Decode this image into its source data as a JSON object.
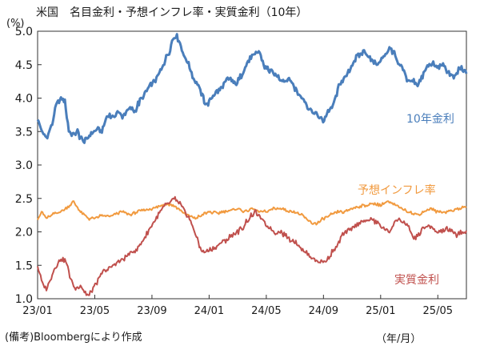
{
  "chart_data": {
    "type": "line",
    "title": "米国　名目金利・予想インフレ率・実質金利（10年）",
    "ylabel": "(%)",
    "xlabel_unit": "（年/月）",
    "source_note": "(備考)Bloombergにより作成",
    "ylim": [
      1.0,
      5.0
    ],
    "y_ticks": [
      "1.0",
      "1.5",
      "2.0",
      "2.5",
      "3.0",
      "3.5",
      "4.0",
      "4.5",
      "5.0"
    ],
    "y_tick_values": [
      1.0,
      1.5,
      2.0,
      2.5,
      3.0,
      3.5,
      4.0,
      4.5,
      5.0
    ],
    "x_ticks": [
      "23/01",
      "23/05",
      "23/09",
      "24/01",
      "24/05",
      "24/09",
      "25/01",
      "25/05"
    ],
    "x_range_months": [
      0,
      30
    ],
    "x_tick_months": [
      0,
      4,
      8,
      12,
      16,
      20,
      24,
      28
    ],
    "series": [
      {
        "name": "10年金利",
        "color": "#4a7ebb",
        "months": [
          0,
          0.3,
          0.6,
          1.0,
          1.3,
          1.6,
          1.9,
          2.2,
          2.5,
          2.8,
          3.0,
          3.3,
          3.6,
          3.9,
          4.2,
          4.5,
          4.8,
          5.0,
          5.3,
          5.6,
          5.9,
          6.2,
          6.5,
          6.8,
          7.0,
          7.3,
          7.6,
          7.9,
          8.2,
          8.5,
          8.8,
          9.0,
          9.2,
          9.4,
          9.6,
          9.8,
          10.0,
          10.3,
          10.6,
          10.9,
          11.2,
          11.5,
          11.8,
          12.0,
          12.3,
          12.6,
          12.9,
          13.2,
          13.5,
          13.8,
          14.0,
          14.3,
          14.6,
          14.9,
          15.2,
          15.5,
          15.8,
          16.0,
          16.3,
          16.6,
          16.9,
          17.2,
          17.5,
          17.8,
          18.0,
          18.3,
          18.6,
          18.9,
          19.2,
          19.5,
          19.8,
          20.0,
          20.3,
          20.6,
          20.9,
          21.2,
          21.5,
          21.8,
          22.0,
          22.3,
          22.6,
          22.9,
          23.2,
          23.5,
          23.8,
          24.0,
          24.3,
          24.6,
          24.9,
          25.2,
          25.5,
          25.8,
          26.0,
          26.3,
          26.6,
          26.9,
          27.2,
          27.5,
          27.8,
          28.0,
          28.3,
          28.6,
          28.9,
          29.2,
          29.5,
          29.8,
          30.0
        ],
        "values": [
          3.7,
          3.5,
          3.4,
          3.6,
          3.9,
          4.0,
          3.95,
          3.5,
          3.45,
          3.5,
          3.4,
          3.35,
          3.45,
          3.5,
          3.55,
          3.5,
          3.7,
          3.75,
          3.7,
          3.8,
          3.72,
          3.8,
          3.85,
          3.8,
          3.9,
          4.0,
          4.1,
          4.2,
          4.25,
          4.35,
          4.5,
          4.6,
          4.7,
          4.85,
          4.95,
          4.9,
          4.8,
          4.6,
          4.5,
          4.3,
          4.2,
          4.05,
          3.9,
          3.95,
          4.05,
          4.1,
          4.15,
          4.25,
          4.3,
          4.2,
          4.25,
          4.35,
          4.5,
          4.6,
          4.65,
          4.7,
          4.5,
          4.45,
          4.4,
          4.35,
          4.3,
          4.25,
          4.3,
          4.25,
          4.15,
          4.05,
          4.0,
          3.85,
          3.8,
          3.75,
          3.7,
          3.65,
          3.8,
          3.85,
          4.05,
          4.25,
          4.3,
          4.4,
          4.5,
          4.6,
          4.65,
          4.7,
          4.6,
          4.55,
          4.5,
          4.55,
          4.65,
          4.75,
          4.7,
          4.5,
          4.45,
          4.3,
          4.25,
          4.25,
          4.2,
          4.3,
          4.45,
          4.5,
          4.5,
          4.45,
          4.5,
          4.4,
          4.35,
          4.3,
          4.45,
          4.4,
          4.38
        ]
      },
      {
        "name": "予想インフレ率",
        "color": "#f19a3f",
        "months": [
          0,
          0.3,
          0.6,
          1.0,
          1.5,
          2.0,
          2.5,
          3.0,
          3.3,
          3.6,
          4.0,
          4.5,
          5.0,
          5.5,
          6.0,
          6.5,
          7.0,
          7.5,
          8.0,
          8.5,
          9.0,
          9.5,
          10.0,
          10.5,
          11.0,
          11.5,
          12.0,
          12.5,
          13.0,
          13.5,
          14.0,
          14.5,
          15.0,
          15.5,
          16.0,
          16.5,
          17.0,
          17.5,
          18.0,
          18.5,
          19.0,
          19.5,
          20.0,
          20.5,
          21.0,
          21.5,
          22.0,
          22.5,
          23.0,
          23.5,
          24.0,
          24.5,
          25.0,
          25.5,
          26.0,
          26.5,
          27.0,
          27.5,
          28.0,
          28.5,
          29.0,
          29.5,
          30.0
        ],
        "values": [
          2.2,
          2.3,
          2.2,
          2.25,
          2.3,
          2.35,
          2.45,
          2.3,
          2.25,
          2.2,
          2.2,
          2.25,
          2.22,
          2.28,
          2.3,
          2.25,
          2.3,
          2.33,
          2.35,
          2.38,
          2.42,
          2.4,
          2.32,
          2.25,
          2.2,
          2.25,
          2.3,
          2.28,
          2.3,
          2.32,
          2.35,
          2.3,
          2.35,
          2.3,
          2.3,
          2.35,
          2.35,
          2.32,
          2.3,
          2.25,
          2.15,
          2.12,
          2.2,
          2.25,
          2.3,
          2.3,
          2.35,
          2.38,
          2.4,
          2.42,
          2.4,
          2.45,
          2.4,
          2.35,
          2.3,
          2.25,
          2.3,
          2.35,
          2.3,
          2.3,
          2.32,
          2.35,
          2.38
        ]
      },
      {
        "name": "実質金利",
        "color": "#c0504d",
        "months": [
          0,
          0.3,
          0.6,
          1.0,
          1.3,
          1.6,
          2.0,
          2.3,
          2.6,
          3.0,
          3.3,
          3.6,
          4.0,
          4.3,
          4.6,
          5.0,
          5.3,
          5.6,
          6.0,
          6.3,
          6.6,
          7.0,
          7.3,
          7.6,
          8.0,
          8.3,
          8.6,
          9.0,
          9.3,
          9.6,
          10.0,
          10.3,
          10.6,
          11.0,
          11.3,
          11.6,
          12.0,
          12.3,
          12.6,
          13.0,
          13.3,
          13.6,
          14.0,
          14.3,
          14.6,
          15.0,
          15.3,
          15.6,
          16.0,
          16.3,
          16.6,
          17.0,
          17.3,
          17.6,
          18.0,
          18.3,
          18.6,
          19.0,
          19.3,
          19.6,
          20.0,
          20.3,
          20.6,
          21.0,
          21.3,
          21.6,
          22.0,
          22.3,
          22.6,
          23.0,
          23.3,
          23.6,
          24.0,
          24.3,
          24.6,
          25.0,
          25.3,
          25.6,
          26.0,
          26.3,
          26.6,
          27.0,
          27.3,
          27.6,
          28.0,
          28.3,
          28.6,
          29.0,
          29.3,
          29.6,
          30.0
        ],
        "values": [
          1.5,
          1.25,
          1.15,
          1.35,
          1.5,
          1.6,
          1.55,
          1.3,
          1.15,
          1.2,
          1.1,
          1.05,
          1.2,
          1.3,
          1.4,
          1.45,
          1.5,
          1.55,
          1.6,
          1.65,
          1.7,
          1.75,
          1.85,
          1.95,
          2.1,
          2.2,
          2.3,
          2.4,
          2.45,
          2.5,
          2.4,
          2.3,
          2.2,
          2.0,
          1.8,
          1.7,
          1.72,
          1.75,
          1.8,
          1.85,
          1.9,
          1.95,
          2.0,
          2.05,
          2.15,
          2.25,
          2.3,
          2.2,
          2.1,
          2.05,
          2.0,
          2.0,
          1.95,
          1.9,
          1.85,
          1.8,
          1.7,
          1.65,
          1.6,
          1.55,
          1.55,
          1.6,
          1.7,
          1.8,
          1.95,
          2.0,
          2.05,
          2.1,
          2.15,
          2.15,
          2.2,
          2.15,
          2.1,
          2.05,
          2.0,
          2.15,
          2.2,
          2.15,
          2.05,
          1.9,
          1.95,
          2.05,
          2.1,
          2.05,
          2.0,
          2.0,
          2.05,
          2.0,
          1.95,
          2.0,
          2.0
        ]
      }
    ],
    "annotations": [
      {
        "text": "10年金利",
        "series": 0
      },
      {
        "text": "予想インフレ率",
        "series": 1
      },
      {
        "text": "実質金利",
        "series": 2
      }
    ]
  }
}
